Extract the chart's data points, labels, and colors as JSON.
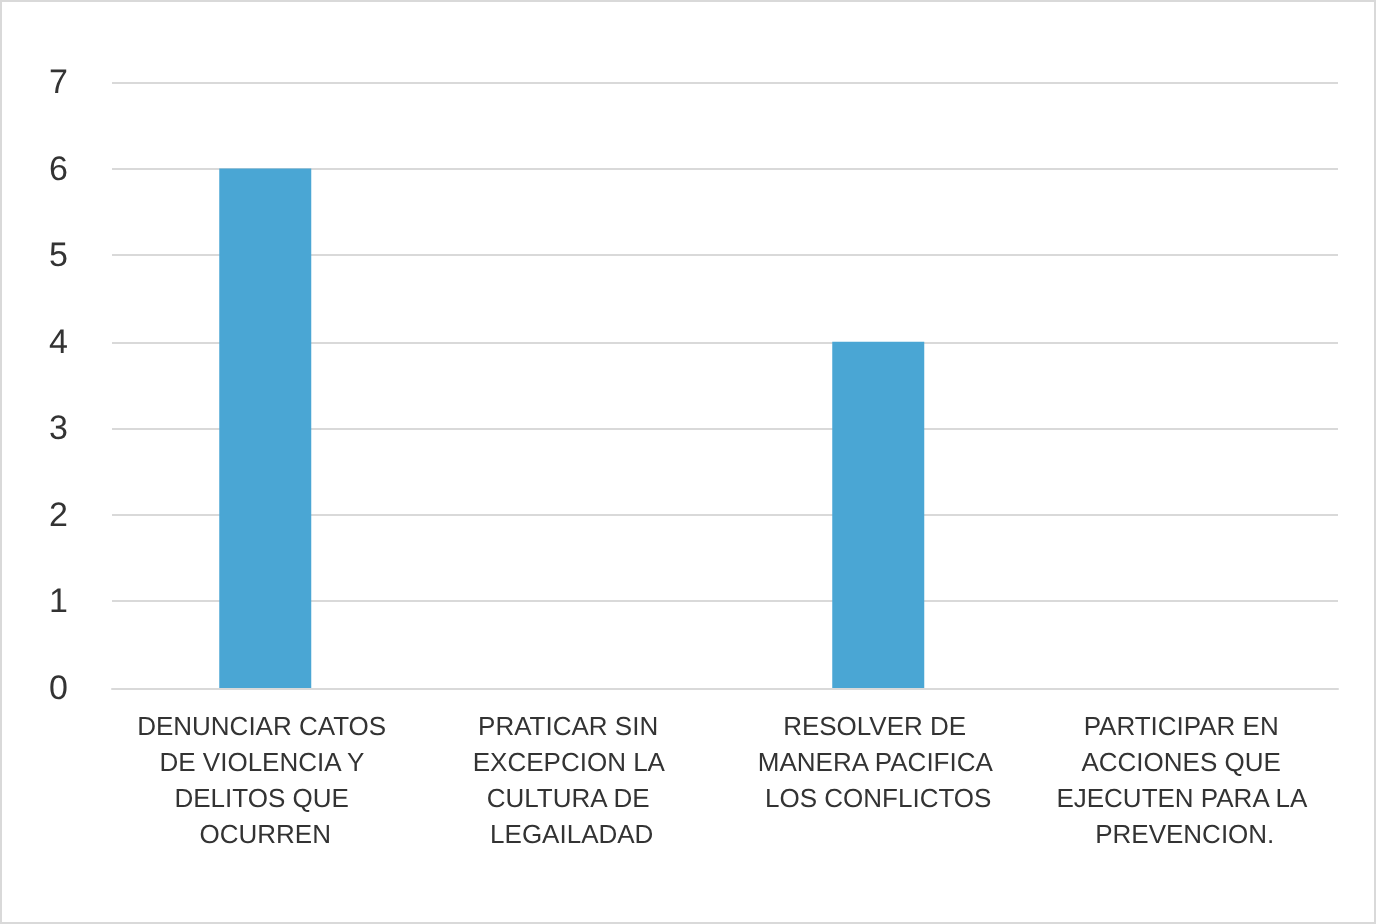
{
  "chart_data": {
    "type": "bar",
    "categories": [
      "DENUNCIAR CATOS DE VIOLENCIA Y DELITOS QUE OCURREN",
      "PRATICAR SIN EXCEPCION LA CULTURA DE LEGAILADAD",
      "RESOLVER DE MANERA PACIFICA LOS CONFLICTOS",
      "PARTICIPAR EN ACCIONES QUE EJECUTEN PARA LA PREVENCION."
    ],
    "values": [
      6,
      0,
      4,
      0
    ],
    "color": "#4aa6d4",
    "ylim": [
      0,
      7
    ],
    "yticks": [
      0,
      1,
      2,
      3,
      4,
      5,
      6,
      7
    ],
    "grid": "y"
  }
}
